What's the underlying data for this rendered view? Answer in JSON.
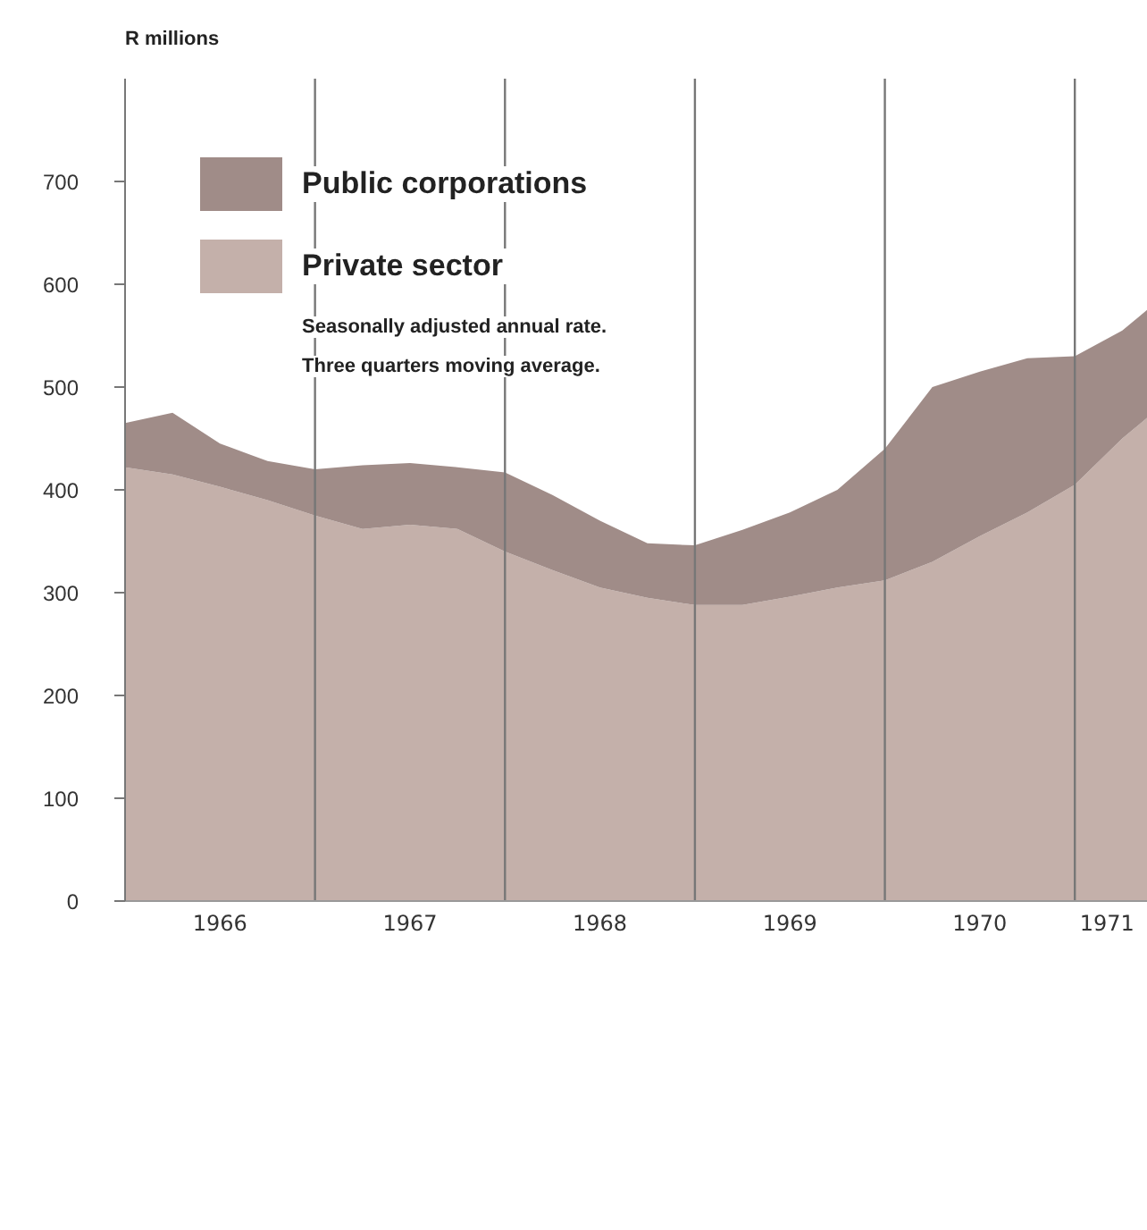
{
  "chart_data": {
    "type": "area",
    "stacked": true,
    "ylabel": "R millions",
    "x": [
      1966,
      1966.25,
      1966.5,
      1966.75,
      1967,
      1967.25,
      1967.5,
      1967.75,
      1968,
      1968.25,
      1968.5,
      1968.75,
      1969,
      1969.25,
      1969.5,
      1969.75,
      1970,
      1970.25,
      1970.5,
      1970.75,
      1971,
      1971.25,
      1971.38
    ],
    "series": [
      {
        "name": "Private sector",
        "color": "#c4b0aa",
        "values": [
          422,
          415,
          403,
          390,
          375,
          362,
          366,
          362,
          340,
          322,
          305,
          295,
          288,
          288,
          296,
          305,
          312,
          330,
          355,
          378,
          405,
          450,
          470
        ]
      },
      {
        "name": "Public corporations",
        "color": "#a08c88",
        "values": [
          43,
          60,
          42,
          38,
          45,
          62,
          60,
          60,
          77,
          73,
          65,
          53,
          58,
          73,
          82,
          95,
          128,
          170,
          160,
          150,
          125,
          105,
          105
        ]
      }
    ],
    "xlim": [
      1966,
      1971.38
    ],
    "xticks": [
      {
        "value": 1966.5,
        "label": "1966"
      },
      {
        "value": 1967.5,
        "label": "1967"
      },
      {
        "value": 1968.5,
        "label": "1968"
      },
      {
        "value": 1969.5,
        "label": "1969"
      },
      {
        "value": 1970.5,
        "label": "1970"
      },
      {
        "value": 1971.17,
        "label": "1971"
      }
    ],
    "ylim": [
      0,
      800
    ],
    "yticks": [
      0,
      100,
      200,
      300,
      400,
      500,
      600,
      700
    ],
    "ref_lines": [
      {
        "axis": "x",
        "value": 1967,
        "color": "#777777"
      },
      {
        "axis": "x",
        "value": 1968,
        "color": "#777777"
      },
      {
        "axis": "x",
        "value": 1969,
        "color": "#777777"
      },
      {
        "axis": "x",
        "value": 1970,
        "color": "#777777"
      },
      {
        "axis": "x",
        "value": 1971,
        "color": "#777777"
      }
    ],
    "legend": "top left",
    "annotations": [
      "Seasonally adjusted annual rate.",
      "Three quarters moving average."
    ]
  }
}
